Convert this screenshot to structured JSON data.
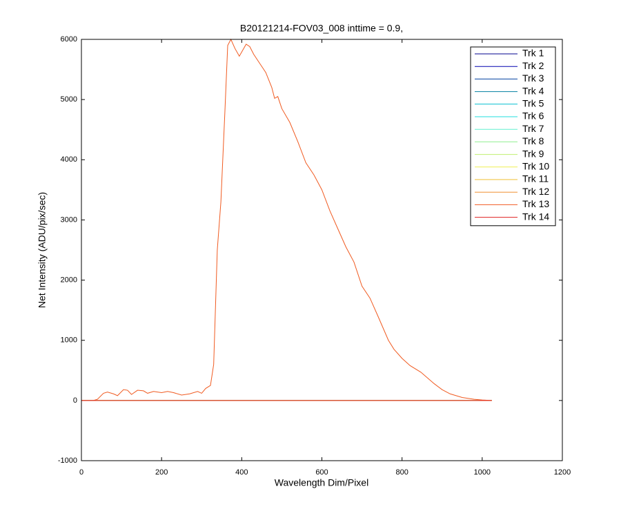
{
  "chart_data": {
    "type": "line",
    "title": "B20121214-FOV03_008 inttime = 0.9,",
    "xlabel": "Wavelength Dim/Pixel",
    "ylabel": "Net Intensity (ADU/pix/sec)",
    "xlim": [
      0,
      1200
    ],
    "xticks": [
      0,
      200,
      400,
      600,
      800,
      1000,
      1200
    ],
    "ylim": [
      -1000,
      6000
    ],
    "yticks": [
      -1000,
      0,
      1000,
      2000,
      3000,
      4000,
      5000,
      6000
    ],
    "grid": false,
    "legend": "upper right",
    "x": [
      0,
      30,
      40,
      55,
      65,
      80,
      90,
      105,
      115,
      125,
      140,
      155,
      165,
      180,
      200,
      215,
      230,
      250,
      270,
      290,
      300,
      310,
      322,
      330,
      339,
      348,
      358,
      365,
      373,
      383,
      394,
      411,
      420,
      430,
      445,
      460,
      475,
      482,
      490,
      500,
      520,
      540,
      560,
      580,
      600,
      620,
      640,
      660,
      680,
      700,
      720,
      740,
      766,
      780,
      800,
      820,
      847,
      880,
      900,
      920,
      950,
      980,
      1000,
      1024
    ],
    "series": [
      {
        "name": "Trk 1",
        "color": "#00008f",
        "values": [
          0,
          0,
          0,
          0,
          0,
          0,
          0,
          0,
          0,
          0,
          0,
          0,
          0,
          0,
          0,
          0,
          0,
          0,
          0,
          0,
          0,
          0,
          0,
          0,
          0,
          0,
          0,
          0,
          0,
          0,
          0,
          0,
          0,
          0,
          0,
          0,
          0,
          0,
          0,
          0,
          0,
          0,
          0,
          0,
          0,
          0,
          0,
          0,
          0,
          0,
          0,
          0,
          0,
          0,
          0,
          0,
          0,
          0,
          0,
          0,
          0,
          0,
          0,
          0
        ]
      },
      {
        "name": "Trk 2",
        "color": "#0000b0",
        "values": [
          0,
          0,
          0,
          0,
          0,
          0,
          0,
          0,
          0,
          0,
          0,
          0,
          0,
          0,
          0,
          0,
          0,
          0,
          0,
          0,
          0,
          0,
          0,
          0,
          0,
          0,
          0,
          0,
          0,
          0,
          0,
          0,
          0,
          0,
          0,
          0,
          0,
          0,
          0,
          0,
          0,
          0,
          0,
          0,
          0,
          0,
          0,
          0,
          0,
          0,
          0,
          0,
          0,
          0,
          0,
          0,
          0,
          0,
          0,
          0,
          0,
          0,
          0,
          0
        ]
      },
      {
        "name": "Trk 3",
        "color": "#0040a0",
        "values": [
          0,
          0,
          0,
          0,
          0,
          0,
          0,
          0,
          0,
          0,
          0,
          0,
          0,
          0,
          0,
          0,
          0,
          0,
          0,
          0,
          0,
          0,
          0,
          0,
          0,
          0,
          0,
          0,
          0,
          0,
          0,
          0,
          0,
          0,
          0,
          0,
          0,
          0,
          0,
          0,
          0,
          0,
          0,
          0,
          0,
          0,
          0,
          0,
          0,
          0,
          0,
          0,
          0,
          0,
          0,
          0,
          0,
          0,
          0,
          0,
          0,
          0,
          0,
          0
        ]
      },
      {
        "name": "Trk 4",
        "color": "#007fa0",
        "values": [
          0,
          0,
          0,
          0,
          0,
          0,
          0,
          0,
          0,
          0,
          0,
          0,
          0,
          0,
          0,
          0,
          0,
          0,
          0,
          0,
          0,
          0,
          0,
          0,
          0,
          0,
          0,
          0,
          0,
          0,
          0,
          0,
          0,
          0,
          0,
          0,
          0,
          0,
          0,
          0,
          0,
          0,
          0,
          0,
          0,
          0,
          0,
          0,
          0,
          0,
          0,
          0,
          0,
          0,
          0,
          0,
          0,
          0,
          0,
          0,
          0,
          0,
          0,
          0
        ]
      },
      {
        "name": "Trk 5",
        "color": "#00bfcf",
        "values": [
          0,
          0,
          0,
          0,
          0,
          0,
          0,
          0,
          0,
          0,
          0,
          0,
          0,
          0,
          0,
          0,
          0,
          0,
          0,
          0,
          0,
          0,
          0,
          0,
          0,
          0,
          0,
          0,
          0,
          0,
          0,
          0,
          0,
          0,
          0,
          0,
          0,
          0,
          0,
          0,
          0,
          0,
          0,
          0,
          0,
          0,
          0,
          0,
          0,
          0,
          0,
          0,
          0,
          0,
          0,
          0,
          0,
          0,
          0,
          0,
          0,
          0,
          0,
          0
        ]
      },
      {
        "name": "Trk 6",
        "color": "#20dfdf",
        "values": [
          0,
          0,
          0,
          0,
          0,
          0,
          0,
          0,
          0,
          0,
          0,
          0,
          0,
          0,
          0,
          0,
          0,
          0,
          0,
          0,
          0,
          0,
          0,
          0,
          0,
          0,
          0,
          0,
          0,
          0,
          0,
          0,
          0,
          0,
          0,
          0,
          0,
          0,
          0,
          0,
          0,
          0,
          0,
          0,
          0,
          0,
          0,
          0,
          0,
          0,
          0,
          0,
          0,
          0,
          0,
          0,
          0,
          0,
          0,
          0,
          0,
          0,
          0,
          0
        ]
      },
      {
        "name": "Trk 7",
        "color": "#60efcf",
        "values": [
          0,
          0,
          0,
          0,
          0,
          0,
          0,
          0,
          0,
          0,
          0,
          0,
          0,
          0,
          0,
          0,
          0,
          0,
          0,
          0,
          0,
          0,
          0,
          0,
          0,
          0,
          0,
          0,
          0,
          0,
          0,
          0,
          0,
          0,
          0,
          0,
          0,
          0,
          0,
          0,
          0,
          0,
          0,
          0,
          0,
          0,
          0,
          0,
          0,
          0,
          0,
          0,
          0,
          0,
          0,
          0,
          0,
          0,
          0,
          0,
          0,
          0,
          0,
          0
        ]
      },
      {
        "name": "Trk 8",
        "color": "#90ef90",
        "values": [
          0,
          0,
          0,
          0,
          0,
          0,
          0,
          0,
          0,
          0,
          0,
          0,
          0,
          0,
          0,
          0,
          0,
          0,
          0,
          0,
          0,
          0,
          0,
          0,
          0,
          0,
          0,
          0,
          0,
          0,
          0,
          0,
          0,
          0,
          0,
          0,
          0,
          0,
          0,
          0,
          0,
          0,
          0,
          0,
          0,
          0,
          0,
          0,
          0,
          0,
          0,
          0,
          0,
          0,
          0,
          0,
          0,
          0,
          0,
          0,
          0,
          0,
          0,
          0
        ]
      },
      {
        "name": "Trk 9",
        "color": "#c0ef70",
        "values": [
          0,
          0,
          0,
          0,
          0,
          0,
          0,
          0,
          0,
          0,
          0,
          0,
          0,
          0,
          0,
          0,
          0,
          0,
          0,
          0,
          0,
          0,
          0,
          0,
          0,
          0,
          0,
          0,
          0,
          0,
          0,
          0,
          0,
          0,
          0,
          0,
          0,
          0,
          0,
          0,
          0,
          0,
          0,
          0,
          0,
          0,
          0,
          0,
          0,
          0,
          0,
          0,
          0,
          0,
          0,
          0,
          0,
          0,
          0,
          0,
          0,
          0,
          0,
          0
        ]
      },
      {
        "name": "Trk 10",
        "color": "#efef50",
        "values": [
          0,
          0,
          0,
          0,
          0,
          0,
          0,
          0,
          0,
          0,
          0,
          0,
          0,
          0,
          0,
          0,
          0,
          0,
          0,
          0,
          0,
          0,
          0,
          0,
          0,
          0,
          0,
          0,
          0,
          0,
          0,
          0,
          0,
          0,
          0,
          0,
          0,
          0,
          0,
          0,
          0,
          0,
          0,
          0,
          0,
          0,
          0,
          0,
          0,
          0,
          0,
          0,
          0,
          0,
          0,
          0,
          0,
          0,
          0,
          0,
          0,
          0,
          0,
          0
        ]
      },
      {
        "name": "Trk 11",
        "color": "#efbf30",
        "values": [
          0,
          0,
          0,
          0,
          0,
          0,
          0,
          0,
          0,
          0,
          0,
          0,
          0,
          0,
          0,
          0,
          0,
          0,
          0,
          0,
          0,
          0,
          0,
          0,
          0,
          0,
          0,
          0,
          0,
          0,
          0,
          0,
          0,
          0,
          0,
          0,
          0,
          0,
          0,
          0,
          0,
          0,
          0,
          0,
          0,
          0,
          0,
          0,
          0,
          0,
          0,
          0,
          0,
          0,
          0,
          0,
          0,
          0,
          0,
          0,
          0,
          0,
          0,
          0
        ]
      },
      {
        "name": "Trk 12",
        "color": "#f09030",
        "values": [
          0,
          0,
          0,
          0,
          0,
          0,
          0,
          0,
          0,
          0,
          0,
          0,
          0,
          0,
          0,
          0,
          0,
          0,
          0,
          0,
          0,
          0,
          0,
          0,
          0,
          0,
          0,
          0,
          0,
          0,
          0,
          0,
          0,
          0,
          0,
          0,
          0,
          0,
          0,
          0,
          0,
          0,
          0,
          0,
          0,
          0,
          0,
          0,
          0,
          0,
          0,
          0,
          0,
          0,
          0,
          0,
          0,
          0,
          0,
          0,
          0,
          0,
          0,
          0
        ]
      },
      {
        "name": "Trk 13",
        "color": "#f05a20",
        "values": [
          0,
          0,
          20,
          120,
          140,
          110,
          80,
          180,
          170,
          100,
          170,
          160,
          120,
          150,
          130,
          150,
          130,
          90,
          110,
          150,
          120,
          200,
          250,
          600,
          2500,
          3300,
          4800,
          5900,
          6000,
          5850,
          5720,
          5920,
          5880,
          5750,
          5600,
          5450,
          5200,
          5020,
          5050,
          4850,
          4620,
          4300,
          3950,
          3750,
          3500,
          3150,
          2850,
          2550,
          2300,
          1900,
          1700,
          1400,
          1000,
          850,
          700,
          580,
          470,
          280,
          180,
          110,
          50,
          20,
          8,
          0
        ]
      },
      {
        "name": "Trk 14",
        "color": "#e02020",
        "values": [
          0,
          0,
          0,
          0,
          0,
          0,
          0,
          0,
          0,
          0,
          0,
          0,
          0,
          0,
          0,
          0,
          0,
          0,
          0,
          0,
          0,
          0,
          0,
          0,
          0,
          0,
          0,
          0,
          0,
          0,
          0,
          0,
          0,
          0,
          0,
          0,
          0,
          0,
          0,
          0,
          0,
          0,
          0,
          0,
          0,
          0,
          0,
          0,
          0,
          0,
          0,
          0,
          0,
          0,
          0,
          0,
          0,
          0,
          0,
          0,
          0,
          0,
          0,
          0
        ]
      }
    ]
  }
}
